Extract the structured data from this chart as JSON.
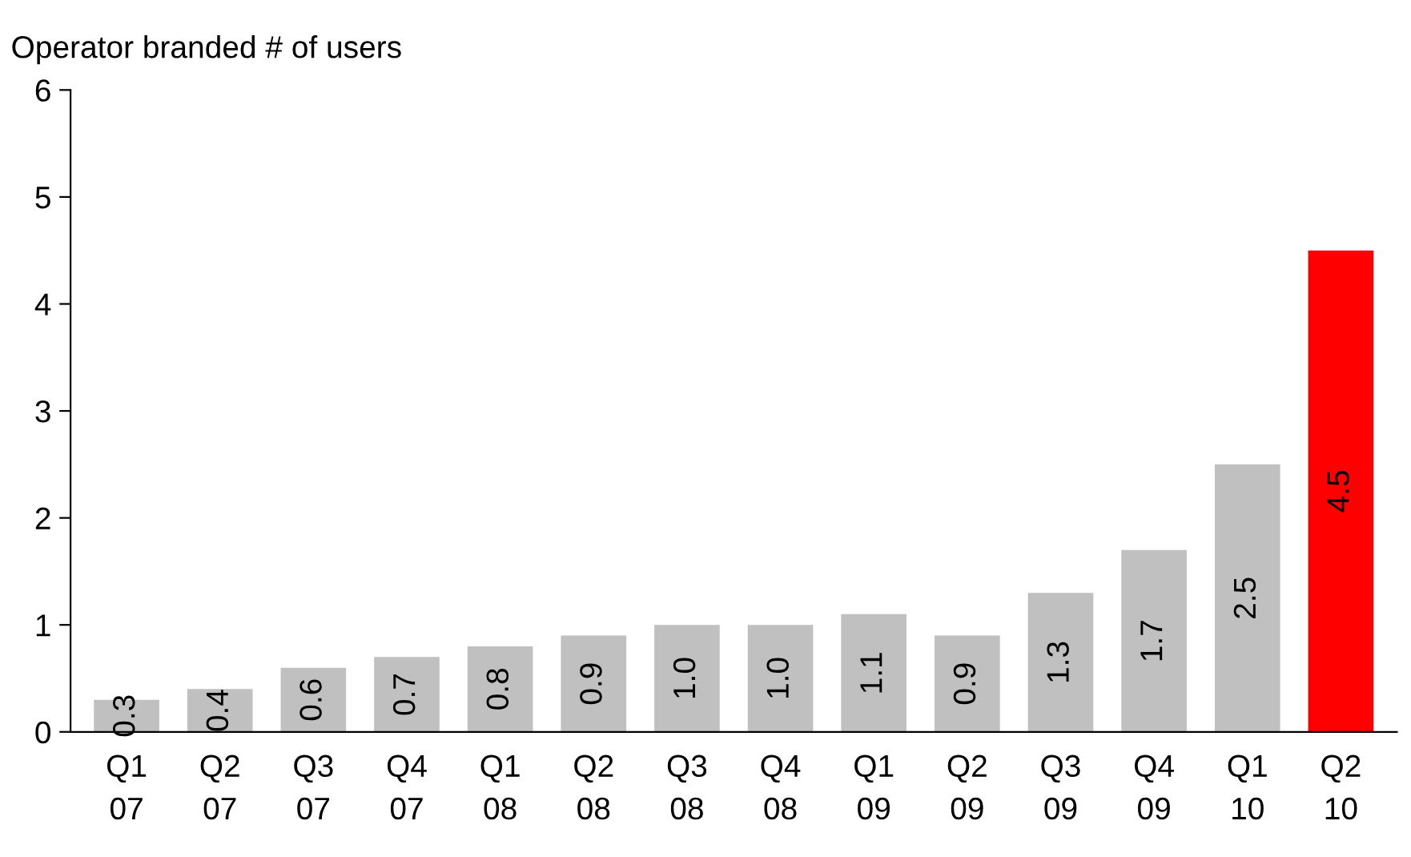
{
  "chart_data": {
    "type": "bar",
    "ylabel": "Operator branded # of users",
    "categories": [
      "Q1\n07",
      "Q2\n07",
      "Q3\n07",
      "Q4\n07",
      "Q1\n08",
      "Q2\n08",
      "Q3\n08",
      "Q4\n08",
      "Q1\n09",
      "Q2\n09",
      "Q3\n09",
      "Q4\n09",
      "Q1\n10",
      "Q2\n10"
    ],
    "values": [
      0.3,
      0.4,
      0.6,
      0.7,
      0.8,
      0.9,
      1.0,
      1.0,
      1.1,
      0.9,
      1.3,
      1.7,
      2.5,
      4.5
    ],
    "colors": [
      "#c0c0c0",
      "#c0c0c0",
      "#c0c0c0",
      "#c0c0c0",
      "#c0c0c0",
      "#c0c0c0",
      "#c0c0c0",
      "#c0c0c0",
      "#c0c0c0",
      "#c0c0c0",
      "#c0c0c0",
      "#c0c0c0",
      "#c0c0c0",
      "#ff0000"
    ],
    "value_labels": [
      "0.3",
      "0.4",
      "0.6",
      "0.7",
      "0.8",
      "0.9",
      "1.0",
      "1.0",
      "1.1",
      "0.9",
      "1.3",
      "1.7",
      "2.5",
      "4.5"
    ],
    "ylim": [
      0,
      6
    ],
    "yticks": [
      0,
      1,
      2,
      3,
      4,
      5,
      6
    ],
    "grid": false,
    "legend": false
  }
}
